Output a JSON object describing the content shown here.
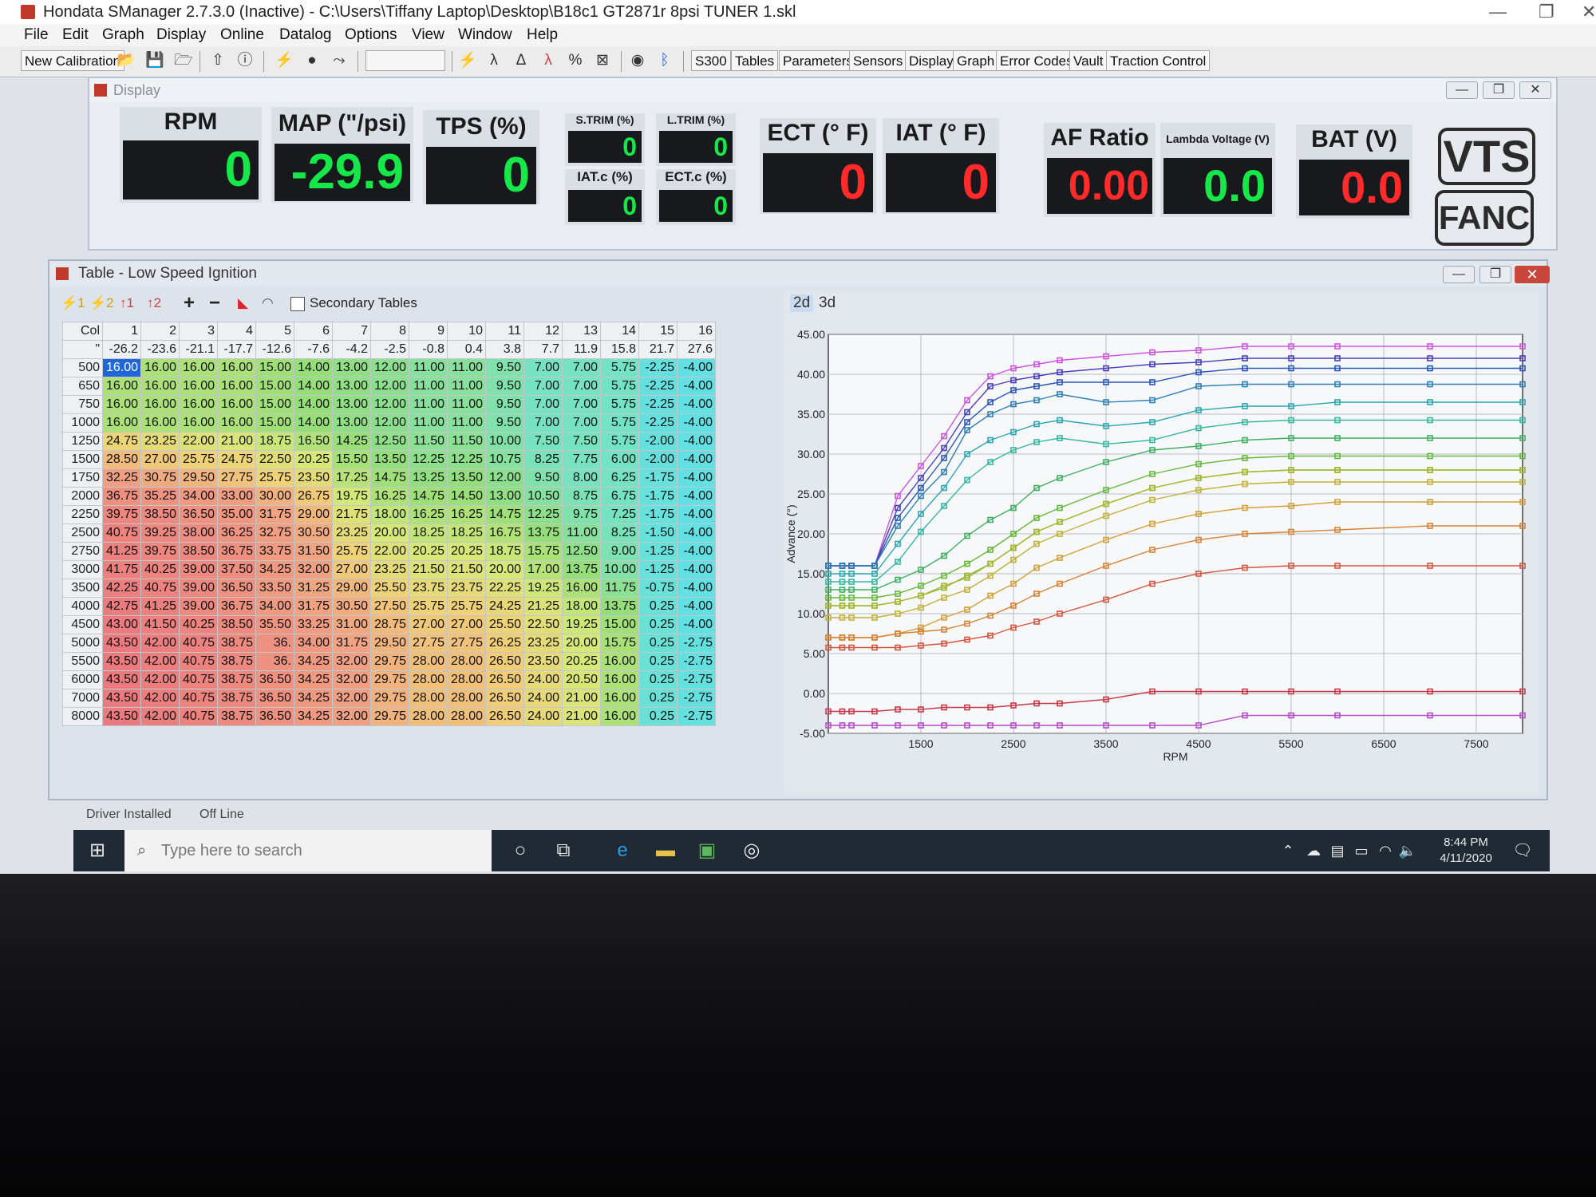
{
  "window": {
    "title": "Hondata SManager 2.7.3.0 (Inactive) - C:\\Users\\Tiffany Laptop\\Desktop\\B18c1 GT2871r 8psi TUNER 1.skl"
  },
  "menu": [
    "File",
    "Edit",
    "Graph",
    "Display",
    "Online",
    "Datalog",
    "Options",
    "View",
    "Window",
    "Help"
  ],
  "toolbar": {
    "new_calibration": "New Calibration",
    "buttons": [
      "S300",
      "Tables",
      "Parameters",
      "Sensors",
      "Display",
      "Graph",
      "Error Codes",
      "Vault",
      "Traction Control"
    ]
  },
  "display_window": {
    "title": "Display",
    "gauges": [
      {
        "label": "RPM",
        "value": "0",
        "color": "#17e84a"
      },
      {
        "label": "MAP (\"/psi)",
        "value": "-29.9",
        "color": "#17e84a"
      },
      {
        "label": "TPS (%)",
        "value": "0",
        "color": "#17e84a"
      },
      {
        "label": "S.TRIM (%)",
        "value": "0",
        "color": "#17e84a"
      },
      {
        "label": "L.TRIM (%)",
        "value": "0",
        "color": "#17e84a"
      },
      {
        "label": "IAT.c (%)",
        "value": "0",
        "color": "#17e84a"
      },
      {
        "label": "ECT.c (%)",
        "value": "0",
        "color": "#17e84a"
      },
      {
        "label": "ECT (° F)",
        "value": "0",
        "color": "#ff2a2a"
      },
      {
        "label": "IAT (° F)",
        "value": "0",
        "color": "#ff2a2a"
      },
      {
        "label": "AF Ratio",
        "value": "0.00",
        "color": "#ff2a2a"
      },
      {
        "label": "Lambda Voltage (V)",
        "value": "0.0",
        "color": "#17e84a"
      },
      {
        "label": "BAT (V)",
        "value": "0.0",
        "color": "#ff2a2a"
      }
    ],
    "vts": "VTS",
    "fanc": "FANC"
  },
  "table_window": {
    "title": "Table - Low Speed Ignition",
    "tool_icons": [
      "⚡1",
      "⚡2",
      "↑1",
      "↑2",
      "+",
      "−"
    ],
    "secondary_tables": "Secondary Tables",
    "col_header": "Col",
    "row_header_mark": "\"",
    "columns": [
      "1",
      "2",
      "3",
      "4",
      "5",
      "6",
      "7",
      "8",
      "9",
      "10",
      "11",
      "12",
      "13",
      "14",
      "15",
      "16"
    ],
    "map_values": [
      "-26.2",
      "-23.6",
      "-21.1",
      "-17.7",
      "-12.6",
      "-7.6",
      "-4.2",
      "-2.5",
      "-0.8",
      "0.4",
      "3.8",
      "7.7",
      "11.9",
      "15.8",
      "21.7",
      "27.6"
    ],
    "rows": [
      {
        "rpm": "500",
        "cells": [
          "16.00",
          "16.00",
          "16.00",
          "16.00",
          "15.00",
          "14.00",
          "13.00",
          "12.00",
          "11.00",
          "11.00",
          "9.50",
          "7.00",
          "7.00",
          "5.75",
          "-2.25",
          "-4.00"
        ]
      },
      {
        "rpm": "650",
        "cells": [
          "16.00",
          "16.00",
          "16.00",
          "16.00",
          "15.00",
          "14.00",
          "13.00",
          "12.00",
          "11.00",
          "11.00",
          "9.50",
          "7.00",
          "7.00",
          "5.75",
          "-2.25",
          "-4.00"
        ]
      },
      {
        "rpm": "750",
        "cells": [
          "16.00",
          "16.00",
          "16.00",
          "16.00",
          "15.00",
          "14.00",
          "13.00",
          "12.00",
          "11.00",
          "11.00",
          "9.50",
          "7.00",
          "7.00",
          "5.75",
          "-2.25",
          "-4.00"
        ]
      },
      {
        "rpm": "1000",
        "cells": [
          "16.00",
          "16.00",
          "16.00",
          "16.00",
          "15.00",
          "14.00",
          "13.00",
          "12.00",
          "11.00",
          "11.00",
          "9.50",
          "7.00",
          "7.00",
          "5.75",
          "-2.25",
          "-4.00"
        ]
      },
      {
        "rpm": "1250",
        "cells": [
          "24.75",
          "23.25",
          "22.00",
          "21.00",
          "18.75",
          "16.50",
          "14.25",
          "12.50",
          "11.50",
          "11.50",
          "10.00",
          "7.50",
          "7.50",
          "5.75",
          "-2.00",
          "-4.00"
        ]
      },
      {
        "rpm": "1500",
        "cells": [
          "28.50",
          "27.00",
          "25.75",
          "24.75",
          "22.50",
          "20.25",
          "15.50",
          "13.50",
          "12.25",
          "12.25",
          "10.75",
          "8.25",
          "7.75",
          "6.00",
          "-2.00",
          "-4.00"
        ]
      },
      {
        "rpm": "1750",
        "cells": [
          "32.25",
          "30.75",
          "29.50",
          "27.75",
          "25.75",
          "23.50",
          "17.25",
          "14.75",
          "13.25",
          "13.50",
          "12.00",
          "9.50",
          "8.00",
          "6.25",
          "-1.75",
          "-4.00"
        ]
      },
      {
        "rpm": "2000",
        "cells": [
          "36.75",
          "35.25",
          "34.00",
          "33.00",
          "30.00",
          "26.75",
          "19.75",
          "16.25",
          "14.75",
          "14.50",
          "13.00",
          "10.50",
          "8.75",
          "6.75",
          "-1.75",
          "-4.00"
        ]
      },
      {
        "rpm": "2250",
        "cells": [
          "39.75",
          "38.50",
          "36.50",
          "35.00",
          "31.75",
          "29.00",
          "21.75",
          "18.00",
          "16.25",
          "16.25",
          "14.75",
          "12.25",
          "9.75",
          "7.25",
          "-1.75",
          "-4.00"
        ]
      },
      {
        "rpm": "2500",
        "cells": [
          "40.75",
          "39.25",
          "38.00",
          "36.25",
          "32.75",
          "30.50",
          "23.25",
          "20.00",
          "18.25",
          "18.25",
          "16.75",
          "13.75",
          "11.00",
          "8.25",
          "-1.50",
          "-4.00"
        ]
      },
      {
        "rpm": "2750",
        "cells": [
          "41.25",
          "39.75",
          "38.50",
          "36.75",
          "33.75",
          "31.50",
          "25.75",
          "22.00",
          "20.25",
          "20.25",
          "18.75",
          "15.75",
          "12.50",
          "9.00",
          "-1.25",
          "-4.00"
        ]
      },
      {
        "rpm": "3000",
        "cells": [
          "41.75",
          "40.25",
          "39.00",
          "37.50",
          "34.25",
          "32.00",
          "27.00",
          "23.25",
          "21.50",
          "21.50",
          "20.00",
          "17.00",
          "13.75",
          "10.00",
          "-1.25",
          "-4.00"
        ]
      },
      {
        "rpm": "3500",
        "cells": [
          "42.25",
          "40.75",
          "39.00",
          "36.50",
          "33.50",
          "31.25",
          "29.00",
          "25.50",
          "23.75",
          "23.75",
          "22.25",
          "19.25",
          "16.00",
          "11.75",
          "-0.75",
          "-4.00"
        ]
      },
      {
        "rpm": "4000",
        "cells": [
          "42.75",
          "41.25",
          "39.00",
          "36.75",
          "34.00",
          "31.75",
          "30.50",
          "27.50",
          "25.75",
          "25.75",
          "24.25",
          "21.25",
          "18.00",
          "13.75",
          "0.25",
          "-4.00"
        ]
      },
      {
        "rpm": "4500",
        "cells": [
          "43.00",
          "41.50",
          "40.25",
          "38.50",
          "35.50",
          "33.25",
          "31.00",
          "28.75",
          "27.00",
          "27.00",
          "25.50",
          "22.50",
          "19.25",
          "15.00",
          "0.25",
          "-4.00"
        ]
      },
      {
        "rpm": "5000",
        "cells": [
          "43.50",
          "42.00",
          "40.75",
          "38.75",
          "36.",
          "34.00",
          "31.75",
          "29.50",
          "27.75",
          "27.75",
          "26.25",
          "23.25",
          "20.00",
          "15.75",
          "0.25",
          "-2.75"
        ]
      },
      {
        "rpm": "5500",
        "cells": [
          "43.50",
          "42.00",
          "40.75",
          "38.75",
          "36.",
          "34.25",
          "32.00",
          "29.75",
          "28.00",
          "28.00",
          "26.50",
          "23.50",
          "20.25",
          "16.00",
          "0.25",
          "-2.75"
        ]
      },
      {
        "rpm": "6000",
        "cells": [
          "43.50",
          "42.00",
          "40.75",
          "38.75",
          "36.50",
          "34.25",
          "32.00",
          "29.75",
          "28.00",
          "28.00",
          "26.50",
          "24.00",
          "20.50",
          "16.00",
          "0.25",
          "-2.75"
        ]
      },
      {
        "rpm": "7000",
        "cells": [
          "43.50",
          "42.00",
          "40.75",
          "38.75",
          "36.50",
          "34.25",
          "32.00",
          "29.75",
          "28.00",
          "28.00",
          "26.50",
          "24.00",
          "21.00",
          "16.00",
          "0.25",
          "-2.75"
        ]
      },
      {
        "rpm": "8000",
        "cells": [
          "43.50",
          "42.00",
          "40.75",
          "38.75",
          "36.50",
          "34.25",
          "32.00",
          "29.75",
          "28.00",
          "28.00",
          "26.50",
          "24.00",
          "21.00",
          "16.00",
          "0.25",
          "-2.75"
        ]
      }
    ],
    "graph_tabs": [
      "2d",
      "3d"
    ]
  },
  "chart_data": {
    "type": "line",
    "xlabel": "RPM",
    "ylabel": "Advance (°)",
    "xlim": [
      500,
      8000
    ],
    "ylim": [
      -5,
      45
    ],
    "x_ticks": [
      "1500",
      "2500",
      "3500",
      "4500",
      "5500",
      "6500",
      "7500"
    ],
    "y_ticks": [
      "45.00",
      "40.00",
      "35.00",
      "30.00",
      "25.00",
      "20.00",
      "15.00",
      "10.00",
      "5.00",
      "0.00",
      "-5.00"
    ],
    "x": [
      500,
      650,
      750,
      1000,
      1250,
      1500,
      1750,
      2000,
      2250,
      2500,
      2750,
      3000,
      3500,
      4000,
      4500,
      5000,
      5500,
      6000,
      7000,
      8000
    ],
    "series_colors": [
      "#cc55dd",
      "#4a3fb8",
      "#2a56b8",
      "#2f7fb5",
      "#2aa6b0",
      "#36b8a0",
      "#3fb062",
      "#65b83a",
      "#8ab830",
      "#a8b833",
      "#c2b238",
      "#d2a038",
      "#d68235",
      "#d2553e",
      "#c73a48",
      "#b54cc8"
    ],
    "grid": true
  },
  "status": {
    "driver": "Driver Installed",
    "line": "Off Line"
  },
  "taskbar": {
    "search_placeholder": "Type here to search",
    "time": "8:44 PM",
    "date": "4/11/2020"
  }
}
